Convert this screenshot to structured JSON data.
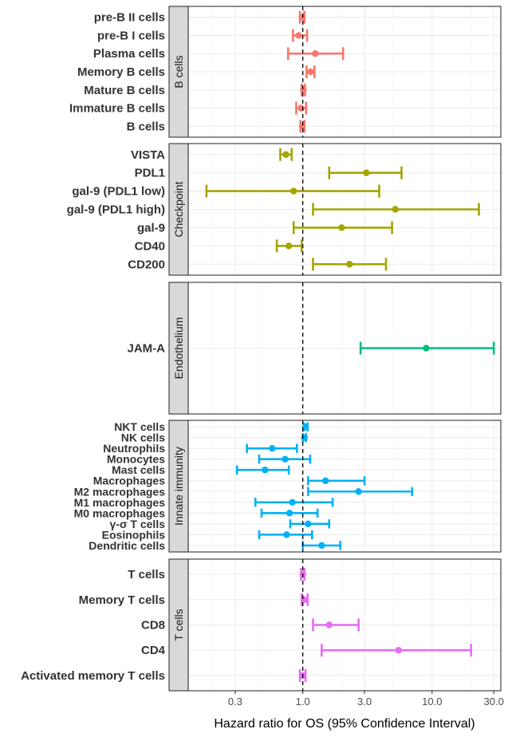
{
  "chart_data": {
    "type": "forest",
    "xlabel": "Hazard ratio for OS (95% Confidence Interval)",
    "x_scale": "log",
    "xlim": [
      0.13,
      34
    ],
    "x_ticks": [
      0.3,
      1.0,
      3.0,
      10.0,
      30.0
    ],
    "x_tick_labels": [
      "0.3",
      "1.0",
      "3.0",
      "10.0",
      "30.0"
    ],
    "reference_line": 1.0,
    "panels": [
      {
        "name": "B cells",
        "color": "#F8766D",
        "rows": [
          {
            "label": "pre-B II cells",
            "hr": 0.99,
            "lo": 0.95,
            "hi": 1.03
          },
          {
            "label": "pre-B I cells",
            "hr": 0.93,
            "lo": 0.84,
            "hi": 1.08
          },
          {
            "label": "Plasma cells",
            "hr": 1.25,
            "lo": 0.77,
            "hi": 2.05
          },
          {
            "label": "Memory B cells",
            "hr": 1.15,
            "lo": 1.07,
            "hi": 1.23
          },
          {
            "label": "Mature B cells",
            "hr": 1.01,
            "lo": 0.98,
            "hi": 1.04
          },
          {
            "label": "Immature B cells",
            "hr": 0.97,
            "lo": 0.89,
            "hi": 1.06
          },
          {
            "label": "B cells",
            "hr": 0.99,
            "lo": 0.96,
            "hi": 1.03
          }
        ]
      },
      {
        "name": "Checkpoint",
        "color": "#A3A500",
        "rows": [
          {
            "label": "VISTA",
            "hr": 0.74,
            "lo": 0.67,
            "hi": 0.82
          },
          {
            "label": "PDL1",
            "hr": 3.1,
            "lo": 1.6,
            "hi": 5.8
          },
          {
            "label": "gal-9 (PDL1 low)",
            "hr": 0.85,
            "lo": 0.18,
            "hi": 3.9
          },
          {
            "label": "gal-9 (PDL1 high)",
            "hr": 5.2,
            "lo": 1.2,
            "hi": 23.0
          },
          {
            "label": "gal-9",
            "hr": 2.0,
            "lo": 0.85,
            "hi": 4.9
          },
          {
            "label": "CD40",
            "hr": 0.78,
            "lo": 0.63,
            "hi": 0.98
          },
          {
            "label": "CD200",
            "hr": 2.3,
            "lo": 1.2,
            "hi": 4.4
          }
        ]
      },
      {
        "name": "Endothelium",
        "color": "#00BF7D",
        "rows": [
          {
            "label": "JAM-A",
            "hr": 9.0,
            "lo": 2.8,
            "hi": 30.0
          }
        ]
      },
      {
        "name": "Innate immunity",
        "color": "#00B0F6",
        "rows": [
          {
            "label": "NKT cells",
            "hr": 1.05,
            "lo": 1.02,
            "hi": 1.09
          },
          {
            "label": "NK cells",
            "hr": 1.03,
            "lo": 1.0,
            "hi": 1.06
          },
          {
            "label": "Neutrophils",
            "hr": 0.58,
            "lo": 0.37,
            "hi": 0.9
          },
          {
            "label": "Monocytes",
            "hr": 0.73,
            "lo": 0.46,
            "hi": 1.14
          },
          {
            "label": "Mast cells",
            "hr": 0.51,
            "lo": 0.31,
            "hi": 0.78
          },
          {
            "label": "Macrophages",
            "hr": 1.5,
            "lo": 1.1,
            "hi": 3.0
          },
          {
            "label": "M2 macrophages",
            "hr": 2.7,
            "lo": 1.1,
            "hi": 7.0
          },
          {
            "label": "M1 macrophages",
            "hr": 0.83,
            "lo": 0.43,
            "hi": 1.7
          },
          {
            "label": "M0 macrophages",
            "hr": 0.79,
            "lo": 0.48,
            "hi": 1.3
          },
          {
            "label": "γ-σ T cells",
            "hr": 1.1,
            "lo": 0.8,
            "hi": 1.6
          },
          {
            "label": "Eosinophils",
            "hr": 0.75,
            "lo": 0.46,
            "hi": 1.18
          },
          {
            "label": "Dendritic cells",
            "hr": 1.4,
            "lo": 1.0,
            "hi": 1.95
          }
        ]
      },
      {
        "name": "T cells",
        "color": "#E76BF3",
        "rows": [
          {
            "label": "T cells",
            "hr": 1.0,
            "lo": 0.97,
            "hi": 1.03
          },
          {
            "label": "Memory T cells",
            "hr": 1.03,
            "lo": 0.98,
            "hi": 1.09
          },
          {
            "label": "CD8",
            "hr": 1.6,
            "lo": 1.2,
            "hi": 2.7
          },
          {
            "label": "CD4",
            "hr": 5.5,
            "lo": 1.4,
            "hi": 20.0
          },
          {
            "label": "Activated memory T cells",
            "hr": 1.0,
            "lo": 0.95,
            "hi": 1.05
          }
        ]
      }
    ]
  }
}
